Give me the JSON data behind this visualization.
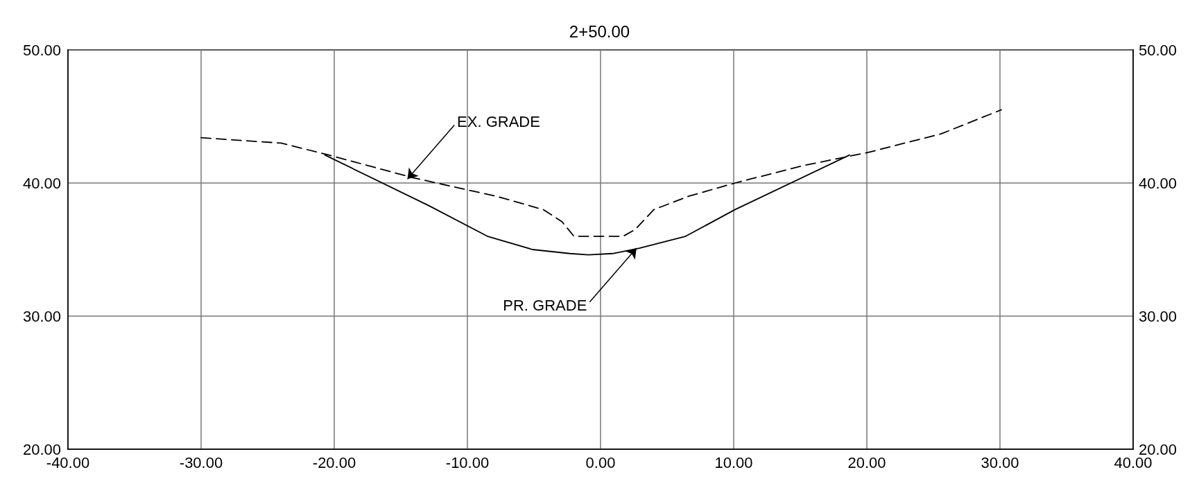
{
  "chart_data": {
    "type": "line",
    "title": "2+50.00",
    "marker": "none",
    "grid": true,
    "xlim": [
      -40,
      40
    ],
    "xticks": [
      {
        "value": -40,
        "label": "-40.00"
      },
      {
        "value": -30,
        "label": "-30.00"
      },
      {
        "value": -20,
        "label": "-20.00"
      },
      {
        "value": -10,
        "label": "-10.00"
      },
      {
        "value": 0,
        "label": "0.00"
      },
      {
        "value": 10,
        "label": "10.00"
      },
      {
        "value": 20,
        "label": "20.00"
      },
      {
        "value": 30,
        "label": "30.00"
      },
      {
        "value": 40,
        "label": "40.00"
      }
    ],
    "ylim": [
      20,
      50
    ],
    "yticks": [
      {
        "value": 20,
        "label": "20.00"
      },
      {
        "value": 30,
        "label": "30.00"
      },
      {
        "value": 40,
        "label": "40.00"
      },
      {
        "value": 50,
        "label": "50.00"
      }
    ],
    "y2lim": [
      20,
      50
    ],
    "y2ticks": [
      {
        "value": 20,
        "label": "20.00"
      },
      {
        "value": 30,
        "label": "30.00"
      },
      {
        "value": 40,
        "label": "40.00"
      },
      {
        "value": 50,
        "label": "50.00"
      }
    ],
    "series": [
      {
        "color": "#000000",
        "line_style": "dashed",
        "x": [
          -30,
          -24,
          -20.4,
          -14.1,
          -7.8,
          -4.3,
          -2.9,
          -2,
          1.7,
          2.6,
          4,
          6.6,
          10.1,
          15.2,
          20.1,
          25.6,
          30.1
        ],
        "values": [
          43.4,
          43,
          42.1,
          40.4,
          39,
          38,
          37.1,
          36,
          36,
          36.5,
          38,
          39,
          40,
          41.3,
          42.3,
          43.7,
          45.5
        ]
      },
      {
        "color": "#000000",
        "line_style": "solid",
        "x": [
          -20.7,
          -12.9,
          -8.5,
          -5.1,
          -2.3,
          -0.9,
          0.9,
          2.9,
          6.4,
          10.1,
          18.7
        ],
        "values": [
          42.1,
          38.3,
          36,
          35,
          34.7,
          34.6,
          34.7,
          35.1,
          36,
          38,
          42.1
        ]
      }
    ],
    "annotations": [
      {
        "text": "EX. GRADE",
        "x": -14.5,
        "y": 40.3
      },
      {
        "text": "PR. GRADE",
        "x": 2.7,
        "y": 35.1
      }
    ]
  }
}
